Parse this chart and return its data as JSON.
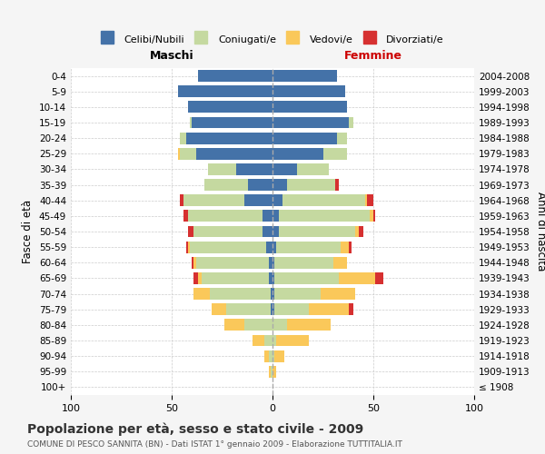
{
  "age_groups": [
    "100+",
    "95-99",
    "90-94",
    "85-89",
    "80-84",
    "75-79",
    "70-74",
    "65-69",
    "60-64",
    "55-59",
    "50-54",
    "45-49",
    "40-44",
    "35-39",
    "30-34",
    "25-29",
    "20-24",
    "15-19",
    "10-14",
    "5-9",
    "0-4"
  ],
  "birth_years": [
    "≤ 1908",
    "1909-1913",
    "1914-1918",
    "1919-1923",
    "1924-1928",
    "1929-1933",
    "1934-1938",
    "1939-1943",
    "1944-1948",
    "1949-1953",
    "1954-1958",
    "1959-1963",
    "1964-1968",
    "1969-1973",
    "1974-1978",
    "1979-1983",
    "1984-1988",
    "1989-1993",
    "1994-1998",
    "1999-2003",
    "2004-2008"
  ],
  "male": {
    "celibi": [
      0,
      0,
      0,
      0,
      0,
      1,
      1,
      2,
      2,
      3,
      5,
      5,
      14,
      12,
      18,
      38,
      43,
      40,
      42,
      47,
      37
    ],
    "coniugati": [
      0,
      1,
      2,
      4,
      14,
      22,
      30,
      33,
      36,
      38,
      34,
      37,
      30,
      22,
      14,
      8,
      3,
      1,
      0,
      0,
      0
    ],
    "vedovi": [
      0,
      1,
      2,
      6,
      10,
      7,
      8,
      2,
      1,
      1,
      0,
      0,
      0,
      0,
      0,
      1,
      0,
      0,
      0,
      0,
      0
    ],
    "divorziati": [
      0,
      0,
      0,
      0,
      0,
      0,
      0,
      2,
      1,
      1,
      3,
      2,
      2,
      0,
      0,
      0,
      0,
      0,
      0,
      0,
      0
    ]
  },
  "female": {
    "nubili": [
      0,
      0,
      0,
      0,
      0,
      1,
      1,
      1,
      1,
      2,
      3,
      3,
      5,
      7,
      12,
      25,
      32,
      38,
      37,
      36,
      32
    ],
    "coniugate": [
      0,
      0,
      1,
      2,
      7,
      17,
      23,
      32,
      29,
      32,
      38,
      45,
      41,
      24,
      16,
      12,
      5,
      2,
      0,
      0,
      0
    ],
    "vedove": [
      0,
      2,
      5,
      16,
      22,
      20,
      17,
      18,
      7,
      4,
      2,
      2,
      1,
      0,
      0,
      0,
      0,
      0,
      0,
      0,
      0
    ],
    "divorziate": [
      0,
      0,
      0,
      0,
      0,
      2,
      0,
      4,
      0,
      1,
      2,
      1,
      3,
      2,
      0,
      0,
      0,
      0,
      0,
      0,
      0
    ]
  },
  "colors": {
    "celibi": "#4472a8",
    "coniugati": "#c5d9a0",
    "vedovi": "#fac85a",
    "divorziati": "#d63030"
  },
  "xlim": 100,
  "title": "Popolazione per età, sesso e stato civile - 2009",
  "subtitle": "COMUNE DI PESCO SANNITA (BN) - Dati ISTAT 1° gennaio 2009 - Elaborazione TUTTITALIA.IT",
  "ylabel_left": "Fasce di età",
  "ylabel_right": "Anni di nascita",
  "xlabel_left": "Maschi",
  "xlabel_right": "Femmine",
  "bg_color": "#f5f5f5",
  "plot_bg": "#ffffff"
}
